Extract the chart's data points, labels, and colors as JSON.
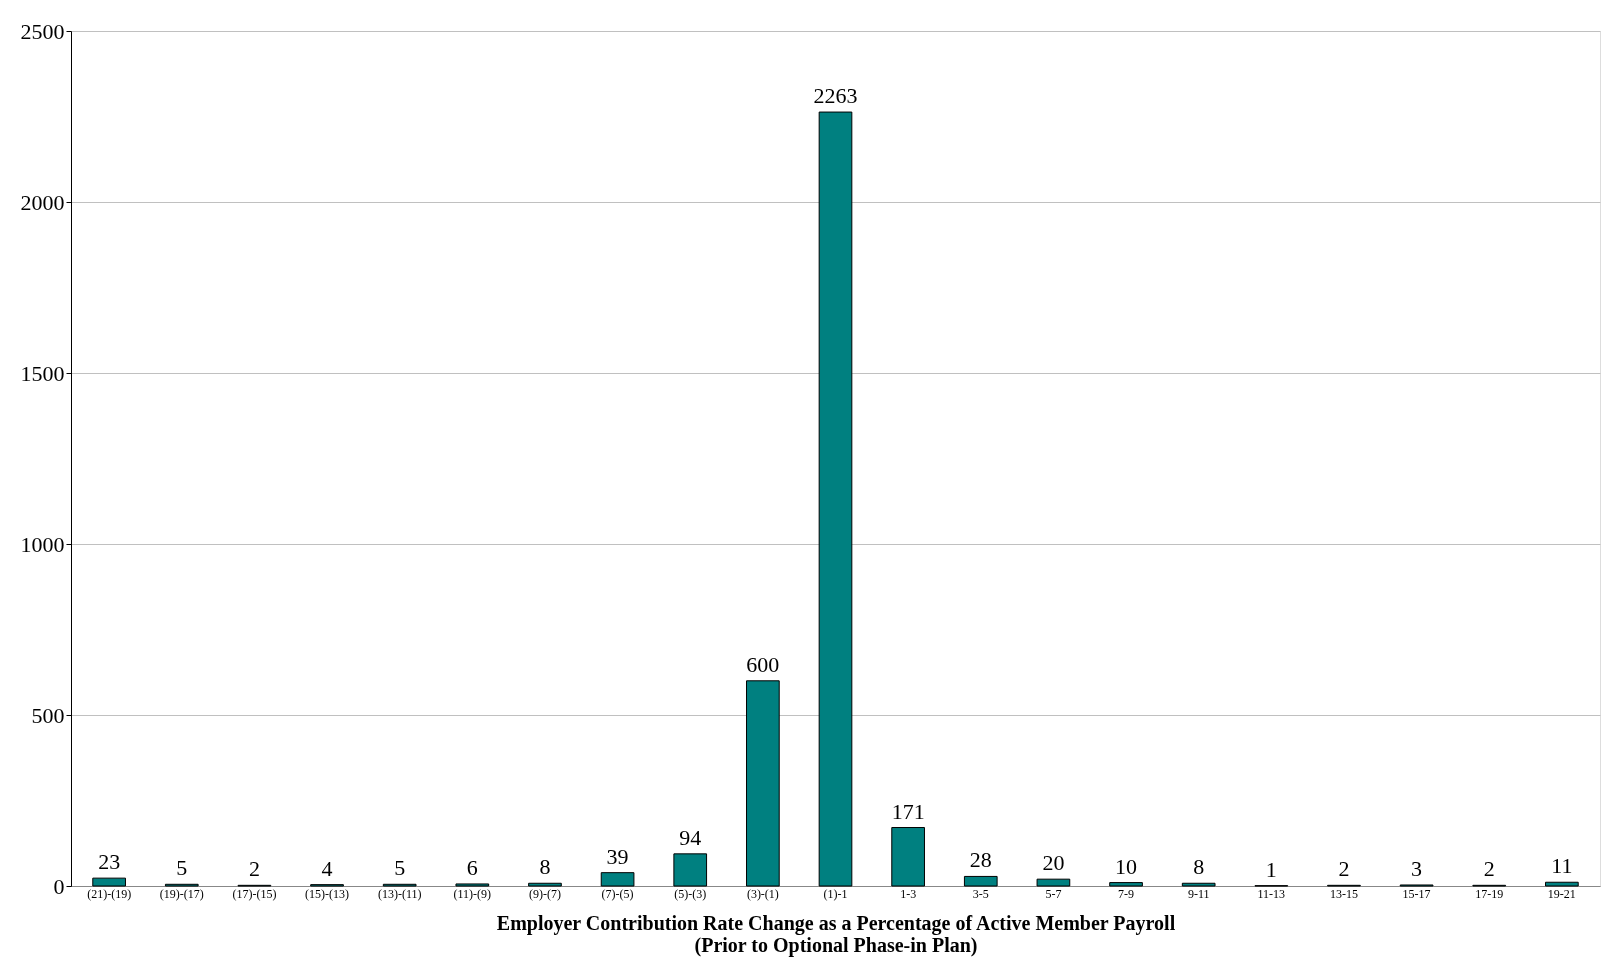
{
  "chart_data": {
    "type": "bar",
    "categories": [
      "(21)-(19)",
      "(19)-(17)",
      "(17)-(15)",
      "(15)-(13)",
      "(13)-(11)",
      "(11)-(9)",
      "(9)-(7)",
      "(7)-(5)",
      "(5)-(3)",
      "(3)-(1)",
      "(1)-1",
      "1-3",
      "3-5",
      "5-7",
      "7-9",
      "9-11",
      "11-13",
      "13-15",
      "15-17",
      "17-19",
      "19-21"
    ],
    "values": [
      23,
      5,
      2,
      4,
      5,
      6,
      8,
      39,
      94,
      600,
      2263,
      171,
      28,
      20,
      10,
      8,
      1,
      2,
      3,
      2,
      11
    ],
    "color": "#008080",
    "xlabel": "Employer Contribution Rate Change as a Percentage of Active Member Payroll\n(Prior  to Optional Phase-in Plan)",
    "ylim": [
      0,
      2500
    ],
    "yticks": [
      0,
      500,
      1000,
      1500,
      2000,
      2500
    ],
    "grid": "y",
    "data_labels": true
  }
}
